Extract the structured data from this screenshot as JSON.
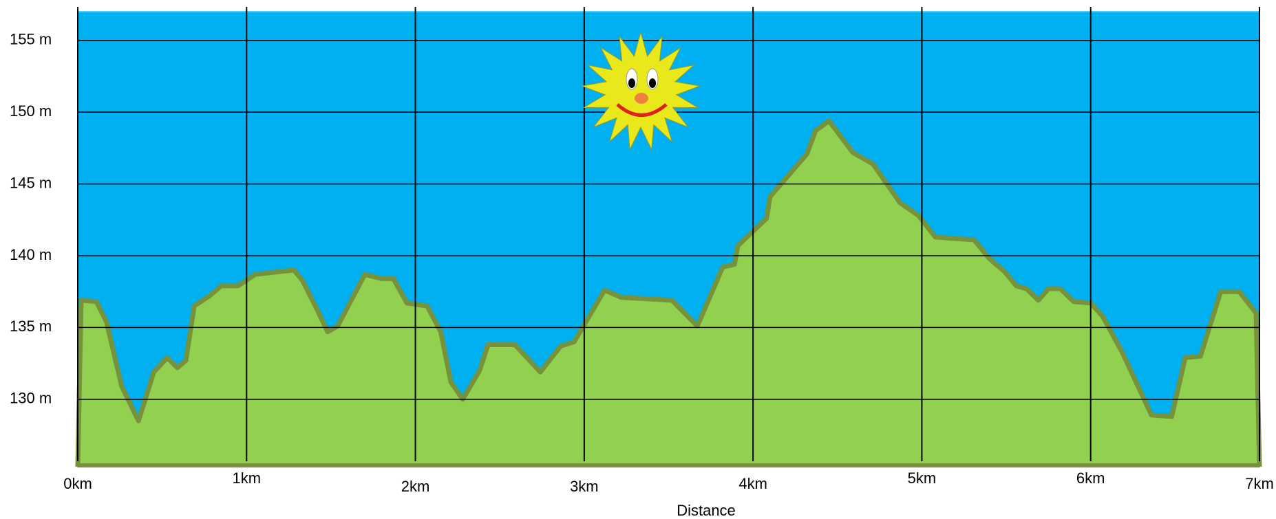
{
  "chart_data": {
    "type": "area",
    "xlabel": "Distance",
    "x": [
      0,
      0.02,
      0.11,
      0.17,
      0.26,
      0.36,
      0.45,
      0.53,
      0.59,
      0.64,
      0.69,
      0.78,
      0.85,
      0.95,
      1.05,
      1.28,
      1.33,
      1.42,
      1.48,
      1.54,
      1.7,
      1.8,
      1.87,
      1.95,
      2.07,
      2.15,
      2.21,
      2.28,
      2.38,
      2.43,
      2.59,
      2.74,
      2.86,
      2.94,
      3.12,
      3.22,
      3.52,
      3.67,
      3.82,
      3.89,
      3.91,
      4.08,
      4.1,
      4.32,
      4.37,
      4.45,
      4.59,
      4.71,
      4.87,
      4.98,
      5.08,
      5.31,
      5.4,
      5.49,
      5.56,
      5.62,
      5.69,
      5.75,
      5.82,
      5.9,
      6.0,
      6.07,
      6.19,
      6.36,
      6.48,
      6.56,
      6.65,
      6.77,
      6.88,
      6.98
    ],
    "values": [
      125.3,
      136.9,
      136.8,
      135.4,
      130.9,
      128.5,
      131.9,
      132.9,
      132.2,
      132.7,
      136.5,
      137.2,
      137.9,
      137.9,
      138.7,
      139.0,
      138.3,
      136.2,
      134.7,
      135.1,
      138.7,
      138.4,
      138.4,
      136.7,
      136.5,
      134.7,
      131.2,
      130.0,
      132.0,
      133.8,
      133.8,
      131.9,
      133.7,
      134.0,
      137.6,
      137.1,
      136.9,
      135.1,
      139.2,
      139.4,
      140.7,
      142.6,
      144.1,
      147.1,
      148.7,
      149.4,
      147.2,
      146.4,
      143.7,
      142.8,
      141.3,
      141.1,
      139.8,
      138.9,
      137.9,
      137.7,
      136.9,
      137.7,
      137.7,
      136.8,
      136.7,
      135.8,
      133.2,
      128.9,
      128.8,
      132.9,
      133.0,
      137.5,
      137.5,
      136.0
    ],
    "fill_color": "#92d050",
    "line_color": "#76923c",
    "background": "#00b0f0",
    "xlim": [
      0,
      7
    ],
    "xticks": [
      {
        "value": 0,
        "label": "0km"
      },
      {
        "value": 1,
        "label": "1km"
      },
      {
        "value": 2,
        "label": "2km"
      },
      {
        "value": 3,
        "label": "3km"
      },
      {
        "value": 4,
        "label": "4km"
      },
      {
        "value": 5,
        "label": "5km"
      },
      {
        "value": 6,
        "label": "6km"
      },
      {
        "value": 7,
        "label": "7km"
      }
    ],
    "ylim": [
      125.3,
      157
    ],
    "yticks": [
      {
        "value": 130,
        "label": "130 m"
      },
      {
        "value": 135,
        "label": "135 m"
      },
      {
        "value": 140,
        "label": "140 m"
      },
      {
        "value": 145,
        "label": "145 m"
      },
      {
        "value": 150,
        "label": "150 m"
      },
      {
        "value": 155,
        "label": "155 m"
      }
    ],
    "grid": true
  }
}
